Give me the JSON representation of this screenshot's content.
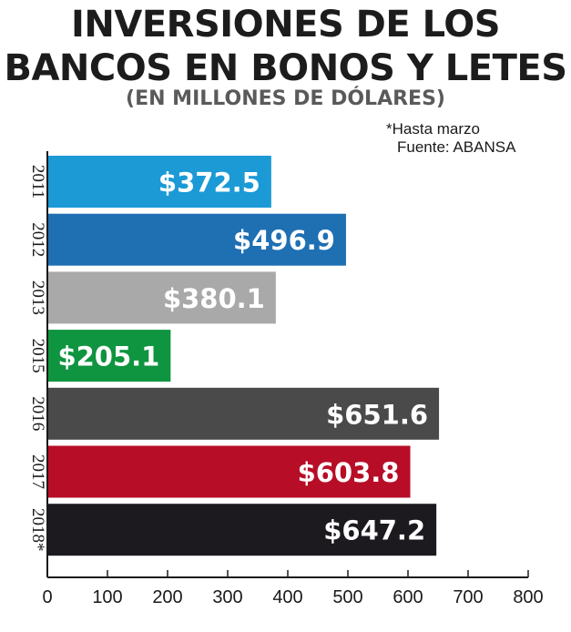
{
  "header": {
    "title_line1": "INVERSIONES DE LOS",
    "title_line2": "BANCOS EN BONOS Y LETES",
    "subtitle": "(EN MILLONES DE DÓLARES)",
    "footnote": "*Hasta marzo",
    "source": "Fuente: ABANSA"
  },
  "chart_data": {
    "type": "bar",
    "orientation": "horizontal",
    "title": "INVERSIONES DE LOS BANCOS EN BONOS Y LETES",
    "subtitle": "(EN MILLONES DE DÓLARES)",
    "categories": [
      "2011",
      "2012",
      "2013",
      "2015",
      "2016",
      "2017",
      "2018*"
    ],
    "values": [
      372.5,
      496.9,
      380.1,
      205.1,
      651.6,
      603.8,
      647.2
    ],
    "value_labels": [
      "$372.5",
      "$496.9",
      "$380.1",
      "$205.1",
      "$651.6",
      "$603.8",
      "$647.2"
    ],
    "colors": [
      "#1b9ad6",
      "#1f6fb3",
      "#a9a9a9",
      "#0f9440",
      "#4a4a4a",
      "#b80d27",
      "#1c1a1f"
    ],
    "xlim": [
      0,
      800
    ],
    "xticks": [
      0,
      100,
      200,
      300,
      400,
      500,
      600,
      700,
      800
    ],
    "grid": false,
    "legend": "none"
  }
}
